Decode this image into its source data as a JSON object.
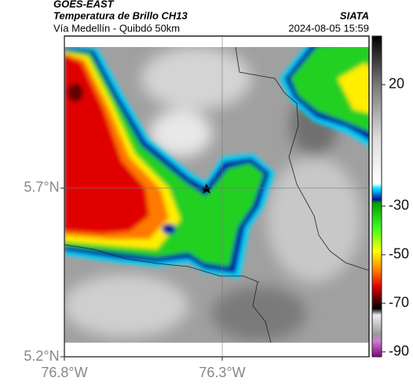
{
  "header": {
    "satellite": "GOES-EAST",
    "product": "Temperatura de Brillo CH13",
    "route": "Vía Medellín - Quibdó 50km",
    "source": "SIATA",
    "timestamp": "2024-08-05 15:59"
  },
  "map": {
    "xlim": [
      -76.8,
      -75.835
    ],
    "ylim": [
      5.2,
      6.151
    ],
    "xticks": [
      {
        "value": -76.8,
        "label": "76.8°W"
      },
      {
        "value": -76.3,
        "label": "76.3°W"
      }
    ],
    "yticks": [
      {
        "value": 5.7,
        "label": "5.7°N"
      },
      {
        "value": 5.2,
        "label": "5.2°N"
      }
    ],
    "grid": true
  },
  "colorbar": {
    "lim": [
      -92,
      40
    ],
    "ticks": [
      20,
      -30,
      -50,
      -70,
      -90
    ]
  }
}
